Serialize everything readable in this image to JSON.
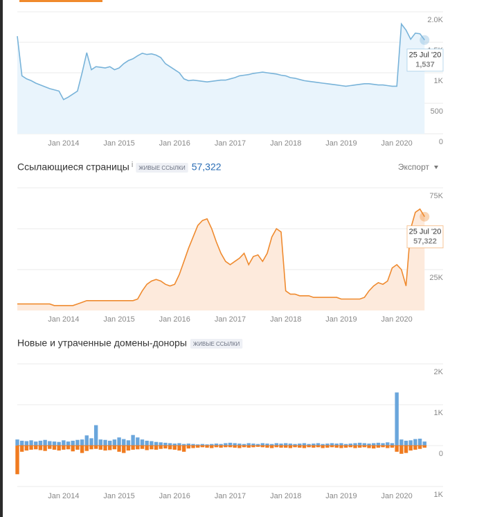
{
  "chart_data": [
    {
      "type": "area",
      "color": "#78b3d9",
      "fill": "#e9f4fc",
      "x": [
        "2013-03",
        "2013-04",
        "2013-05",
        "2013-06",
        "2013-07",
        "2013-08",
        "2013-09",
        "2013-10",
        "2013-11",
        "2013-12",
        "2014-01",
        "2014-02",
        "2014-03",
        "2014-04",
        "2014-05",
        "2014-06",
        "2014-07",
        "2014-08",
        "2014-09",
        "2014-10",
        "2014-11",
        "2014-12",
        "2015-01",
        "2015-02",
        "2015-03",
        "2015-04",
        "2015-05",
        "2015-06",
        "2015-07",
        "2015-08",
        "2015-09",
        "2015-10",
        "2015-11",
        "2015-12",
        "2016-01",
        "2016-02",
        "2016-03",
        "2016-04",
        "2016-05",
        "2016-06",
        "2016-07",
        "2016-08",
        "2016-09",
        "2016-10",
        "2016-11",
        "2016-12",
        "2017-01",
        "2017-02",
        "2017-03",
        "2017-04",
        "2017-05",
        "2017-06",
        "2017-07",
        "2017-08",
        "2017-09",
        "2017-10",
        "2017-11",
        "2017-12",
        "2018-01",
        "2018-02",
        "2018-03",
        "2018-04",
        "2018-05",
        "2018-06",
        "2018-07",
        "2018-08",
        "2018-09",
        "2018-10",
        "2018-11",
        "2018-12",
        "2019-01",
        "2019-02",
        "2019-03",
        "2019-04",
        "2019-05",
        "2019-06",
        "2019-07",
        "2019-08",
        "2019-09",
        "2019-10",
        "2019-11",
        "2019-12",
        "2020-01",
        "2020-02",
        "2020-03",
        "2020-04",
        "2020-05",
        "2020-06",
        "2020-07"
      ],
      "values": [
        1600,
        950,
        900,
        870,
        830,
        800,
        770,
        740,
        720,
        700,
        560,
        600,
        650,
        700,
        1000,
        1330,
        1050,
        1100,
        1090,
        1080,
        1100,
        1050,
        1080,
        1150,
        1200,
        1230,
        1280,
        1320,
        1300,
        1310,
        1290,
        1250,
        1150,
        1100,
        1050,
        1000,
        900,
        870,
        880,
        870,
        860,
        850,
        860,
        870,
        880,
        880,
        900,
        920,
        950,
        960,
        970,
        990,
        1000,
        1010,
        1000,
        990,
        980,
        960,
        950,
        920,
        910,
        890,
        870,
        860,
        850,
        840,
        830,
        820,
        810,
        800,
        790,
        780,
        790,
        800,
        810,
        820,
        820,
        810,
        800,
        800,
        790,
        780,
        780,
        1800,
        1700,
        1550,
        1650,
        1640,
        1537
      ],
      "xlim": [
        "2013-03",
        "2020-11"
      ],
      "xticks": [
        {
          "value": "2014-01",
          "label": "Jan 2014"
        },
        {
          "value": "2015-01",
          "label": "Jan 2015"
        },
        {
          "value": "2016-01",
          "label": "Jan 2016"
        },
        {
          "value": "2017-01",
          "label": "Jan 2017"
        },
        {
          "value": "2018-01",
          "label": "Jan 2018"
        },
        {
          "value": "2019-01",
          "label": "Jan 2019"
        },
        {
          "value": "2020-01",
          "label": "Jan 2020"
        }
      ],
      "ylim": [
        0,
        2000
      ],
      "yticks": [
        0,
        500,
        {
          "value": 1000,
          "label": "1K"
        },
        {
          "value": 1500,
          "label": "1.5K"
        },
        {
          "value": 2000,
          "label": "2.0K"
        }
      ],
      "grid": true,
      "tooltip": {
        "label": "25 Jul '20",
        "value_label": "1,537"
      }
    },
    {
      "type": "area",
      "title": "Ссылающиеся страницы",
      "info": "i",
      "badge": "ЖИВЫЕ ССЫЛКИ",
      "summary": "57,322",
      "export": "Экспорт",
      "color": "#ef8a2e",
      "fill": "#fdeadc",
      "x": [
        "2013-03",
        "2013-04",
        "2013-05",
        "2013-06",
        "2013-07",
        "2013-08",
        "2013-09",
        "2013-10",
        "2013-11",
        "2013-12",
        "2014-01",
        "2014-02",
        "2014-03",
        "2014-04",
        "2014-05",
        "2014-06",
        "2014-07",
        "2014-08",
        "2014-09",
        "2014-10",
        "2014-11",
        "2014-12",
        "2015-01",
        "2015-02",
        "2015-03",
        "2015-04",
        "2015-05",
        "2015-06",
        "2015-07",
        "2015-08",
        "2015-09",
        "2015-10",
        "2015-11",
        "2015-12",
        "2016-01",
        "2016-02",
        "2016-03",
        "2016-04",
        "2016-05",
        "2016-06",
        "2016-07",
        "2016-08",
        "2016-09",
        "2016-10",
        "2016-11",
        "2016-12",
        "2017-01",
        "2017-02",
        "2017-03",
        "2017-04",
        "2017-05",
        "2017-06",
        "2017-07",
        "2017-08",
        "2017-09",
        "2017-10",
        "2017-11",
        "2017-12",
        "2018-01",
        "2018-02",
        "2018-03",
        "2018-04",
        "2018-05",
        "2018-06",
        "2018-07",
        "2018-08",
        "2018-09",
        "2018-10",
        "2018-11",
        "2018-12",
        "2019-01",
        "2019-02",
        "2019-03",
        "2019-04",
        "2019-05",
        "2019-06",
        "2019-07",
        "2019-08",
        "2019-09",
        "2019-10",
        "2019-11",
        "2019-12",
        "2020-01",
        "2020-02",
        "2020-03",
        "2020-04",
        "2020-05",
        "2020-06",
        "2020-07"
      ],
      "values": [
        4000,
        4000,
        4000,
        4000,
        4000,
        4000,
        4000,
        4000,
        3000,
        3000,
        3000,
        3000,
        3000,
        4000,
        5000,
        6000,
        6000,
        6000,
        6000,
        6000,
        6000,
        6000,
        6000,
        6000,
        6000,
        6000,
        7000,
        12000,
        16000,
        18000,
        19000,
        18000,
        16000,
        15000,
        16000,
        22000,
        30000,
        38000,
        45000,
        52000,
        55000,
        56000,
        50000,
        42000,
        35000,
        30000,
        28000,
        30000,
        32000,
        35000,
        28000,
        33000,
        34000,
        30000,
        35000,
        45000,
        50000,
        48000,
        12000,
        10000,
        10000,
        9000,
        9000,
        9000,
        8000,
        8000,
        8000,
        8000,
        8000,
        8000,
        7000,
        7000,
        7000,
        7000,
        7000,
        8000,
        12000,
        15000,
        17000,
        16000,
        18000,
        26000,
        28000,
        25000,
        15000,
        50000,
        60000,
        62000,
        57322
      ],
      "xlim": [
        "2013-03",
        "2020-11"
      ],
      "xticks": [
        {
          "value": "2014-01",
          "label": "Jan 2014"
        },
        {
          "value": "2015-01",
          "label": "Jan 2015"
        },
        {
          "value": "2016-01",
          "label": "Jan 2016"
        },
        {
          "value": "2017-01",
          "label": "Jan 2017"
        },
        {
          "value": "2018-01",
          "label": "Jan 2018"
        },
        {
          "value": "2019-01",
          "label": "Jan 2019"
        },
        {
          "value": "2020-01",
          "label": "Jan 2020"
        }
      ],
      "ylim": [
        0,
        75000
      ],
      "yticks": [
        {
          "value": 25000,
          "label": "25K"
        },
        {
          "value": 50000,
          "label": "50K"
        },
        {
          "value": 75000,
          "label": "75K"
        }
      ],
      "grid": true,
      "tooltip": {
        "label": "25 Jul '20",
        "value_label": "57,322"
      }
    },
    {
      "type": "bar",
      "title": "Новые и утраченные домены-доноры",
      "badge": "ЖИВЫЕ ССЫЛКИ",
      "x": [
        "2013-03",
        "2013-04",
        "2013-05",
        "2013-06",
        "2013-07",
        "2013-08",
        "2013-09",
        "2013-10",
        "2013-11",
        "2013-12",
        "2014-01",
        "2014-02",
        "2014-03",
        "2014-04",
        "2014-05",
        "2014-06",
        "2014-07",
        "2014-08",
        "2014-09",
        "2014-10",
        "2014-11",
        "2014-12",
        "2015-01",
        "2015-02",
        "2015-03",
        "2015-04",
        "2015-05",
        "2015-06",
        "2015-07",
        "2015-08",
        "2015-09",
        "2015-10",
        "2015-11",
        "2015-12",
        "2016-01",
        "2016-02",
        "2016-03",
        "2016-04",
        "2016-05",
        "2016-06",
        "2016-07",
        "2016-08",
        "2016-09",
        "2016-10",
        "2016-11",
        "2016-12",
        "2017-01",
        "2017-02",
        "2017-03",
        "2017-04",
        "2017-05",
        "2017-06",
        "2017-07",
        "2017-08",
        "2017-09",
        "2017-10",
        "2017-11",
        "2017-12",
        "2018-01",
        "2018-02",
        "2018-03",
        "2018-04",
        "2018-05",
        "2018-06",
        "2018-07",
        "2018-08",
        "2018-09",
        "2018-10",
        "2018-11",
        "2018-12",
        "2019-01",
        "2019-02",
        "2019-03",
        "2019-04",
        "2019-05",
        "2019-06",
        "2019-07",
        "2019-08",
        "2019-09",
        "2019-10",
        "2019-11",
        "2019-12",
        "2020-01",
        "2020-02",
        "2020-03",
        "2020-04",
        "2020-05",
        "2020-06",
        "2020-07"
      ],
      "series": [
        {
          "color": "#6aa6dc",
          "values": [
            150,
            120,
            110,
            130,
            100,
            120,
            140,
            110,
            100,
            90,
            130,
            100,
            120,
            140,
            150,
            250,
            180,
            500,
            150,
            140,
            120,
            150,
            200,
            160,
            130,
            260,
            200,
            150,
            120,
            110,
            90,
            80,
            70,
            60,
            50,
            60,
            40,
            50,
            40,
            30,
            40,
            30,
            40,
            50,
            40,
            60,
            70,
            60,
            50,
            40,
            60,
            50,
            40,
            60,
            50,
            40,
            60,
            50,
            60,
            50,
            40,
            50,
            60,
            40,
            50,
            60,
            40,
            50,
            60,
            50,
            60,
            40,
            50,
            60,
            70,
            60,
            50,
            60,
            70,
            60,
            80,
            60,
            1300,
            150,
            120,
            130,
            160,
            170,
            100
          ]
        },
        {
          "color": "#f07b1f",
          "values": [
            -700,
            -150,
            -120,
            -100,
            -90,
            -110,
            -130,
            -80,
            -100,
            -120,
            -100,
            -90,
            -140,
            -100,
            -180,
            -130,
            -90,
            -80,
            -100,
            -120,
            -110,
            -90,
            -150,
            -180,
            -120,
            -100,
            -90,
            -80,
            -110,
            -90,
            -100,
            -80,
            -70,
            -90,
            -100,
            -120,
            -150,
            -70,
            -60,
            -50,
            -40,
            -50,
            -60,
            -40,
            -50,
            -40,
            -40,
            -50,
            -60,
            -40,
            -50,
            -40,
            -30,
            -40,
            -50,
            -60,
            -40,
            -50,
            -50,
            -60,
            -40,
            -50,
            -60,
            -40,
            -50,
            -40,
            -60,
            -50,
            -40,
            -50,
            -60,
            -50,
            -40,
            -60,
            -50,
            -40,
            -60,
            -70,
            -50,
            -40,
            -60,
            -50,
            -150,
            -200,
            -180,
            -120,
            -100,
            -80,
            -50
          ]
        }
      ],
      "xlim": [
        "2013-03",
        "2020-11"
      ],
      "xticks": [
        {
          "value": "2014-01",
          "label": "Jan 2014"
        },
        {
          "value": "2015-01",
          "label": "Jan 2015"
        },
        {
          "value": "2016-01",
          "label": "Jan 2016"
        },
        {
          "value": "2017-01",
          "label": "Jan 2017"
        },
        {
          "value": "2018-01",
          "label": "Jan 2018"
        },
        {
          "value": "2019-01",
          "label": "Jan 2019"
        },
        {
          "value": "2020-01",
          "label": "Jan 2020"
        }
      ],
      "ylim": [
        -1000,
        2000
      ],
      "yticks": [
        {
          "value": -1000,
          "label": "1K"
        },
        0,
        {
          "value": 1000,
          "label": "1K"
        },
        {
          "value": 2000,
          "label": "2K"
        }
      ],
      "grid": true
    }
  ]
}
